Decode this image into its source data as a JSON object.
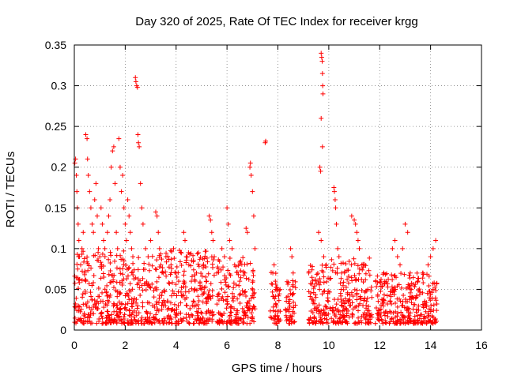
{
  "chart_data": {
    "type": "scatter",
    "title": "Day 320 of 2025, Rate Of TEC Index for receiver krgg",
    "xlabel": "GPS time / hours",
    "ylabel": "ROTI / TECUs",
    "xlim": [
      0,
      16
    ],
    "ylim": [
      0,
      0.35
    ],
    "x_ticks": [
      "0",
      "2",
      "4",
      "6",
      "8",
      "10",
      "12",
      "14",
      "16"
    ],
    "y_ticks": [
      "0",
      "0.05",
      "0.1",
      "0.15",
      "0.2",
      "0.25",
      "0.3",
      "0.35"
    ],
    "grid": true,
    "marker": "+",
    "colors": {
      "series": "#ff0000",
      "axis": "#000000",
      "grid": "#808080"
    },
    "series": [
      {
        "points": [
          [
            0.02,
            0.205
          ],
          [
            0.05,
            0.21
          ],
          [
            0.08,
            0.19
          ],
          [
            0.1,
            0.17
          ],
          [
            0.12,
            0.15
          ],
          [
            0.15,
            0.13
          ],
          [
            0.18,
            0.11
          ],
          [
            0.2,
            0.09
          ],
          [
            0.25,
            0.08
          ],
          [
            0.3,
            0.1
          ],
          [
            0.35,
            0.12
          ],
          [
            0.4,
            0.07
          ],
          [
            0.45,
            0.06
          ],
          [
            0.45,
            0.24
          ],
          [
            0.5,
            0.235
          ],
          [
            0.52,
            0.21
          ],
          [
            0.55,
            0.19
          ],
          [
            0.6,
            0.17
          ],
          [
            0.65,
            0.15
          ],
          [
            0.7,
            0.13
          ],
          [
            0.75,
            0.12
          ],
          [
            0.8,
            0.16
          ],
          [
            0.85,
            0.18
          ],
          [
            0.9,
            0.14
          ],
          [
            0.95,
            0.1
          ],
          [
            1.0,
            0.09
          ],
          [
            1.05,
            0.15
          ],
          [
            1.1,
            0.13
          ],
          [
            1.15,
            0.11
          ],
          [
            1.2,
            0.1
          ],
          [
            1.3,
            0.12
          ],
          [
            1.35,
            0.14
          ],
          [
            1.4,
            0.16
          ],
          [
            1.45,
            0.2
          ],
          [
            1.5,
            0.22
          ],
          [
            1.55,
            0.225
          ],
          [
            1.6,
            0.18
          ],
          [
            1.65,
            0.12
          ],
          [
            1.7,
            0.1
          ],
          [
            1.75,
            0.235
          ],
          [
            1.8,
            0.2
          ],
          [
            1.85,
            0.17
          ],
          [
            1.9,
            0.19
          ],
          [
            1.95,
            0.15
          ],
          [
            2.0,
            0.13
          ],
          [
            2.05,
            0.11
          ],
          [
            2.1,
            0.16
          ],
          [
            2.15,
            0.14
          ],
          [
            2.2,
            0.12
          ],
          [
            2.25,
            0.1
          ],
          [
            2.3,
            0.09
          ],
          [
            2.4,
            0.31
          ],
          [
            2.42,
            0.305
          ],
          [
            2.45,
            0.3
          ],
          [
            2.48,
            0.298
          ],
          [
            2.5,
            0.24
          ],
          [
            2.52,
            0.23
          ],
          [
            2.55,
            0.225
          ],
          [
            2.6,
            0.18
          ],
          [
            2.65,
            0.15
          ],
          [
            2.7,
            0.13
          ],
          [
            2.8,
            0.1
          ],
          [
            2.9,
            0.09
          ],
          [
            3.0,
            0.11
          ],
          [
            3.2,
            0.145
          ],
          [
            3.25,
            0.14
          ],
          [
            3.3,
            0.12
          ],
          [
            3.35,
            0.1
          ],
          [
            3.4,
            0.08
          ],
          [
            3.5,
            0.07
          ],
          [
            3.6,
            0.09
          ],
          [
            3.8,
            0.08
          ],
          [
            3.9,
            0.1
          ],
          [
            4.0,
            0.07
          ],
          [
            4.1,
            0.06
          ],
          [
            4.3,
            0.12
          ],
          [
            4.35,
            0.11
          ],
          [
            4.4,
            0.09
          ],
          [
            4.5,
            0.08
          ],
          [
            4.6,
            0.06
          ],
          [
            4.8,
            0.07
          ],
          [
            5.0,
            0.05
          ],
          [
            5.2,
            0.06
          ],
          [
            5.3,
            0.14
          ],
          [
            5.35,
            0.135
          ],
          [
            5.4,
            0.12
          ],
          [
            5.45,
            0.11
          ],
          [
            5.5,
            0.09
          ],
          [
            5.6,
            0.07
          ],
          [
            5.8,
            0.1
          ],
          [
            5.9,
            0.09
          ],
          [
            6.0,
            0.15
          ],
          [
            6.05,
            0.13
          ],
          [
            6.1,
            0.11
          ],
          [
            6.2,
            0.1
          ],
          [
            6.3,
            0.08
          ],
          [
            6.5,
            0.06
          ],
          [
            6.7,
            0.07
          ],
          [
            6.75,
            0.125
          ],
          [
            6.8,
            0.12
          ],
          [
            6.9,
            0.2
          ],
          [
            6.92,
            0.205
          ],
          [
            6.95,
            0.19
          ],
          [
            7.0,
            0.17
          ],
          [
            7.05,
            0.14
          ],
          [
            7.1,
            0.1
          ],
          [
            7.5,
            0.23
          ],
          [
            7.52,
            0.232
          ],
          [
            7.8,
            0.07
          ],
          [
            7.85,
            0.08
          ],
          [
            7.9,
            0.06
          ],
          [
            8.0,
            0.05
          ],
          [
            8.5,
            0.1
          ],
          [
            8.55,
            0.09
          ],
          [
            8.6,
            0.07
          ],
          [
            9.7,
            0.34
          ],
          [
            9.72,
            0.335
          ],
          [
            9.74,
            0.33
          ],
          [
            9.75,
            0.315
          ],
          [
            9.76,
            0.3
          ],
          [
            9.77,
            0.29
          ],
          [
            9.7,
            0.26
          ],
          [
            9.75,
            0.225
          ],
          [
            9.65,
            0.2
          ],
          [
            9.68,
            0.195
          ],
          [
            9.6,
            0.12
          ],
          [
            9.7,
            0.11
          ],
          [
            9.8,
            0.09
          ],
          [
            9.9,
            0.08
          ],
          [
            10.2,
            0.175
          ],
          [
            10.22,
            0.17
          ],
          [
            10.25,
            0.16
          ],
          [
            10.27,
            0.15
          ],
          [
            10.3,
            0.13
          ],
          [
            10.35,
            0.1
          ],
          [
            10.4,
            0.09
          ],
          [
            10.5,
            0.07
          ],
          [
            10.9,
            0.14
          ],
          [
            11.0,
            0.135
          ],
          [
            11.05,
            0.13
          ],
          [
            11.1,
            0.12
          ],
          [
            11.15,
            0.11
          ],
          [
            11.2,
            0.1
          ],
          [
            11.3,
            0.08
          ],
          [
            12.5,
            0.1
          ],
          [
            12.6,
            0.11
          ],
          [
            12.7,
            0.09
          ],
          [
            12.8,
            0.08
          ],
          [
            12.9,
            0.1
          ],
          [
            13.0,
            0.13
          ],
          [
            13.1,
            0.12
          ],
          [
            13.2,
            0.07
          ],
          [
            13.5,
            0.06
          ],
          [
            13.7,
            0.07
          ],
          [
            13.9,
            0.08
          ],
          [
            14.0,
            0.09
          ],
          [
            14.1,
            0.1
          ],
          [
            14.2,
            0.11
          ],
          [
            14.1,
            0.05
          ]
        ]
      }
    ]
  }
}
